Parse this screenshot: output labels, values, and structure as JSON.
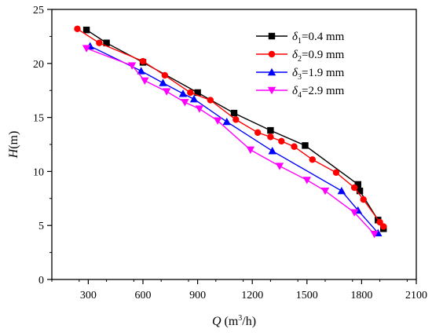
{
  "chart_data": {
    "type": "line",
    "xlabel": {
      "var": "Q",
      "unit": "m",
      "sup": "3",
      "unit_tail": "/h"
    },
    "ylabel": {
      "var": "H",
      "unit": "(m)"
    },
    "xlim": [
      100,
      2100
    ],
    "ylim": [
      0,
      25
    ],
    "xticks": [
      "300",
      "600",
      "900",
      "1200",
      "1500",
      "1800",
      "2100"
    ],
    "yticks": [
      "0",
      "5",
      "10",
      "15",
      "20",
      "25"
    ],
    "legend_position": "top-right",
    "series": [
      {
        "name": "δ1=0.4 mm",
        "sym": "δ",
        "sub": "1",
        "value": "=0.4 mm",
        "color": "#000000",
        "marker": "square",
        "x": [
          290,
          400,
          600,
          900,
          1100,
          1300,
          1490,
          1780,
          1790,
          1890,
          1920
        ],
        "y": [
          23.1,
          21.9,
          20.1,
          17.3,
          15.4,
          13.8,
          12.4,
          8.8,
          8.2,
          5.5,
          4.7
        ]
      },
      {
        "name": "δ2=0.9 mm",
        "sym": "δ",
        "sub": "2",
        "value": "=0.9 mm",
        "color": "#ff0000",
        "marker": "circle",
        "x": [
          240,
          360,
          600,
          720,
          860,
          970,
          1110,
          1230,
          1300,
          1360,
          1430,
          1530,
          1660,
          1760,
          1810,
          1900,
          1920
        ],
        "y": [
          23.2,
          21.9,
          20.2,
          18.9,
          17.3,
          16.6,
          14.8,
          13.6,
          13.2,
          12.8,
          12.3,
          11.1,
          9.9,
          8.5,
          7.4,
          5.3,
          4.9
        ]
      },
      {
        "name": "δ3=1.9 mm",
        "sym": "δ",
        "sub": "3",
        "value": "=1.9 mm",
        "color": "#0000ff",
        "marker": "triangle-up",
        "x": [
          310,
          590,
          710,
          820,
          880,
          1060,
          1310,
          1690,
          1780,
          1890
        ],
        "y": [
          21.6,
          19.3,
          18.2,
          17.2,
          16.7,
          14.6,
          11.9,
          8.2,
          6.4,
          4.3
        ]
      },
      {
        "name": "δ4=2.9 mm",
        "sym": "δ",
        "sub": "4",
        "value": "=2.9 mm",
        "color": "#ff00ff",
        "marker": "triangle-down",
        "x": [
          290,
          540,
          610,
          730,
          830,
          910,
          1010,
          1190,
          1350,
          1500,
          1600,
          1760,
          1870
        ],
        "y": [
          21.4,
          19.8,
          18.4,
          17.4,
          16.4,
          15.8,
          14.7,
          12.0,
          10.5,
          9.2,
          8.2,
          6.2,
          4.2
        ]
      }
    ]
  }
}
